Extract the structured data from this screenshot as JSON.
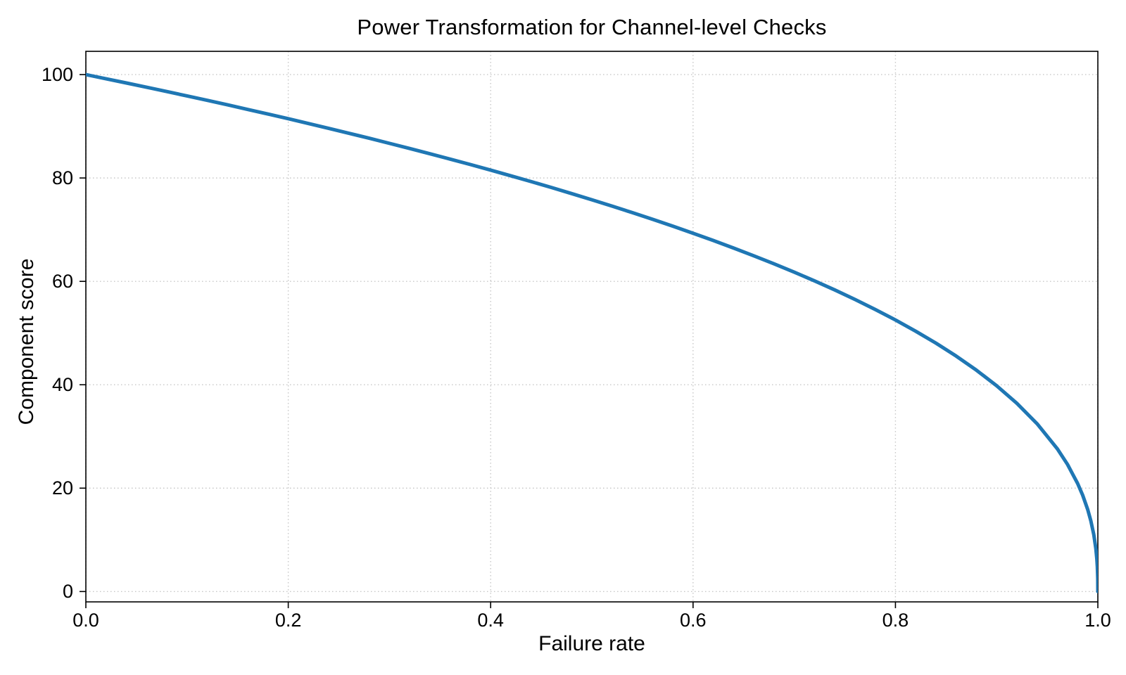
{
  "figure": {
    "background": "#ffffff"
  },
  "chart_data": {
    "type": "line",
    "title": "Power Transformation for Channel-level Checks",
    "xlabel": "Failure rate",
    "ylabel": "Component score",
    "xlim": [
      0,
      1
    ],
    "ylim": [
      -2,
      104.5
    ],
    "xticks": {
      "values": [
        0.0,
        0.2,
        0.4,
        0.6,
        0.8,
        1.0
      ],
      "labels": [
        "0.0",
        "0.2",
        "0.4",
        "0.6",
        "0.8",
        "1.0"
      ]
    },
    "yticks": {
      "values": [
        0,
        20,
        40,
        60,
        80,
        100
      ],
      "labels": [
        "0",
        "20",
        "40",
        "60",
        "80",
        "100"
      ]
    },
    "grid": {
      "visible": true,
      "style": "dotted",
      "color": "#c7c7c7"
    },
    "axes_color": "#000000",
    "legend": null,
    "series": [
      {
        "name": "component-score-curve",
        "color": "#1f77b4",
        "line_width": 5,
        "relation": "y = 100 * (1 - x)^0.4",
        "x": [
          0,
          0.02,
          0.04,
          0.06,
          0.08,
          0.1,
          0.12,
          0.14,
          0.16,
          0.18,
          0.2,
          0.22,
          0.24,
          0.26,
          0.28,
          0.3,
          0.32,
          0.34,
          0.36,
          0.38,
          0.4,
          0.42,
          0.44,
          0.46,
          0.48,
          0.5,
          0.52,
          0.54,
          0.56,
          0.58,
          0.6,
          0.62,
          0.64,
          0.66,
          0.68,
          0.7,
          0.72,
          0.74,
          0.76,
          0.78,
          0.8,
          0.82,
          0.84,
          0.86,
          0.88,
          0.9,
          0.92,
          0.94,
          0.96,
          0.97,
          0.98,
          0.985,
          0.99,
          0.993,
          0.996,
          0.998,
          0.999,
          0.9995,
          0.9999,
          1.0
        ],
        "y": [
          100,
          99.19,
          98.38,
          97.56,
          96.72,
          95.87,
          95.02,
          94.15,
          93.26,
          92.37,
          91.46,
          90.54,
          89.6,
          88.65,
          87.69,
          86.7,
          85.7,
          84.69,
          83.65,
          82.6,
          81.52,
          80.42,
          79.3,
          78.16,
          76.98,
          75.79,
          74.56,
          73.3,
          72.01,
          70.68,
          69.31,
          67.91,
          66.45,
          64.95,
          63.4,
          61.78,
          60.1,
          58.35,
          56.51,
          54.57,
          52.53,
          50.36,
          48.05,
          45.55,
          42.82,
          39.81,
          36.41,
          32.45,
          27.6,
          24.6,
          20.91,
          18.64,
          15.85,
          13.74,
          10.99,
          8.33,
          6.31,
          4.78,
          2.51,
          0
        ]
      }
    ]
  }
}
